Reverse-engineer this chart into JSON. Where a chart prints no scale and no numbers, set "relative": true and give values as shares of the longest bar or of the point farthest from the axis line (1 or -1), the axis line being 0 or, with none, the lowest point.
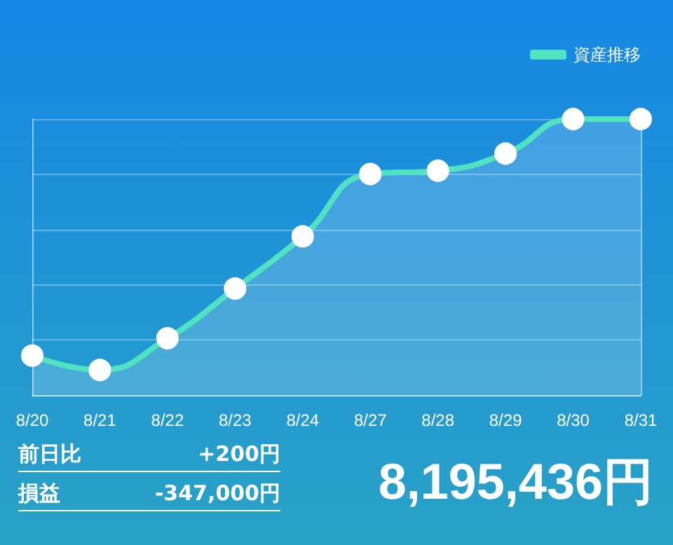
{
  "chart_data": {
    "type": "area",
    "relative": true,
    "categories": [
      "8/20",
      "8/21",
      "8/22",
      "8/23",
      "8/24",
      "8/27",
      "8/28",
      "8/29",
      "8/30",
      "8/31"
    ],
    "series": [
      {
        "name": "資産推移",
        "color": "#50e3c2",
        "values": [
          0.143,
          0.091,
          0.206,
          0.386,
          0.575,
          0.801,
          0.813,
          0.875,
          1,
          1
        ]
      }
    ],
    "grid": "y",
    "legend": "top right",
    "marker": "circle",
    "line_style": "solid",
    "annotations": [
      "前日比",
      "+200円",
      "損益",
      "-347,000円",
      "8,195,436円"
    ]
  }
}
